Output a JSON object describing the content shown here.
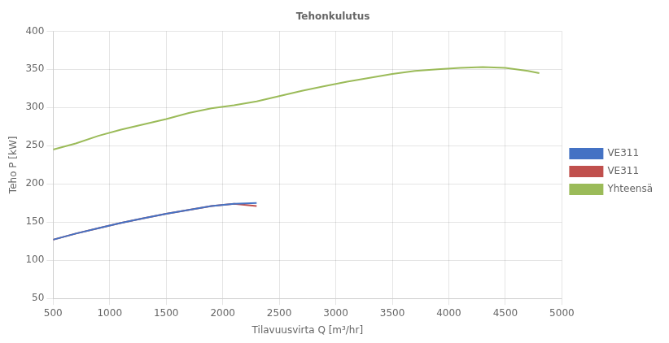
{
  "chart_data": {
    "type": "line",
    "title": "Tehonkulutus",
    "xlabel": "Tilavuusvirta Q [m³/hr]",
    "ylabel": "Teho P [kW]",
    "xlim": [
      500,
      5000
    ],
    "ylim": [
      50,
      400
    ],
    "xticks": [
      500,
      1000,
      1500,
      2000,
      2500,
      3000,
      3500,
      4000,
      4500,
      5000
    ],
    "yticks": [
      50,
      100,
      150,
      200,
      250,
      300,
      350,
      400
    ],
    "grid": true,
    "legend": "right",
    "series": [
      {
        "name": "VE311",
        "color": "#4472c4",
        "x": [
          500,
          700,
          900,
          1100,
          1300,
          1500,
          1700,
          1900,
          2100,
          2300
        ],
        "values": [
          127,
          135,
          142,
          149,
          155,
          161,
          166,
          171,
          174,
          175
        ]
      },
      {
        "name": "VE311",
        "color": "#c0504d",
        "x": [
          500,
          700,
          900,
          1100,
          1300,
          1500,
          1700,
          1900,
          2100,
          2300
        ],
        "values": [
          127,
          135,
          142,
          149,
          155,
          161,
          166,
          171,
          174,
          171
        ]
      },
      {
        "name": "Yhteensä",
        "color": "#9bbb59",
        "x": [
          500,
          700,
          900,
          1100,
          1300,
          1500,
          1700,
          1900,
          2100,
          2300,
          2500,
          2700,
          2900,
          3100,
          3300,
          3500,
          3700,
          3900,
          4100,
          4300,
          4500,
          4700,
          4800
        ],
        "values": [
          245,
          253,
          263,
          271,
          278,
          285,
          293,
          299,
          303,
          308,
          315,
          322,
          328,
          334,
          339,
          344,
          348,
          350,
          352,
          353,
          352,
          348,
          345
        ]
      }
    ]
  }
}
